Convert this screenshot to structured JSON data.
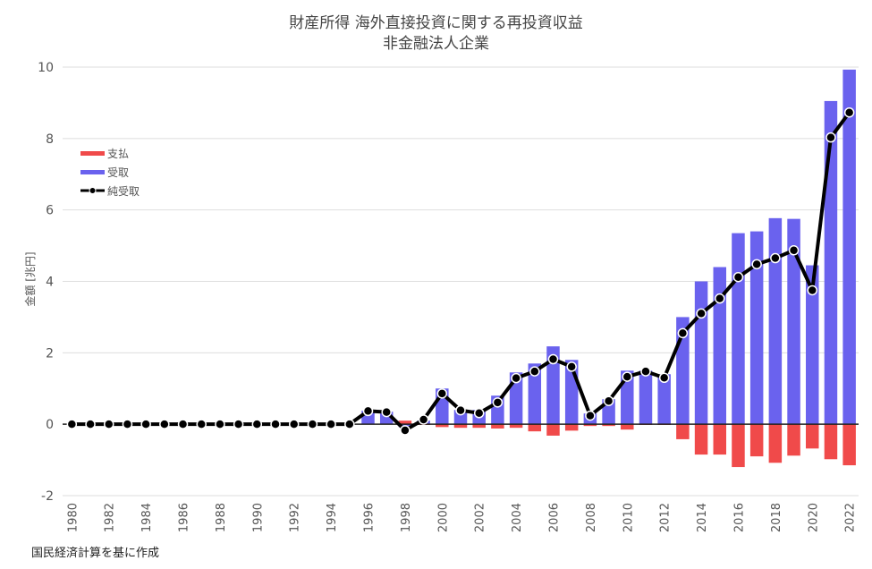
{
  "chart_data": {
    "type": "bar",
    "title": "財産所得 海外直接投資に関する再投資収益",
    "subtitle": "非金融法人企業",
    "ylabel": "金額 [兆円]",
    "xlabel": "",
    "ylim": [
      -2,
      10
    ],
    "yticks": [
      -2,
      0,
      2,
      4,
      6,
      8,
      10
    ],
    "grid": true,
    "legend_position": "top-left",
    "x": [
      1980,
      1981,
      1982,
      1983,
      1984,
      1985,
      1986,
      1987,
      1988,
      1989,
      1990,
      1991,
      1992,
      1993,
      1994,
      1995,
      1996,
      1997,
      1998,
      1999,
      2000,
      2001,
      2002,
      2003,
      2004,
      2005,
      2006,
      2007,
      2008,
      2009,
      2010,
      2011,
      2012,
      2013,
      2014,
      2015,
      2016,
      2017,
      2018,
      2019,
      2020,
      2021,
      2022
    ],
    "xtick_labels": [
      "1980",
      "1982",
      "1984",
      "1986",
      "1988",
      "1990",
      "1992",
      "1994",
      "1996",
      "1998",
      "2000",
      "2002",
      "2004",
      "2006",
      "2008",
      "2010",
      "2012",
      "2014",
      "2016",
      "2018",
      "2020",
      "2022"
    ],
    "series": [
      {
        "name": "支払",
        "kind": "bar",
        "color": "#f04a4a",
        "values": [
          0,
          0,
          0,
          0,
          0,
          0,
          0,
          0,
          0,
          0,
          0,
          0,
          0,
          0,
          0,
          0,
          0,
          0,
          0.1,
          -0.02,
          -0.08,
          -0.1,
          -0.1,
          -0.12,
          -0.1,
          -0.2,
          -0.32,
          -0.18,
          -0.05,
          -0.05,
          -0.15,
          -0.02,
          -0.02,
          -0.42,
          -0.85,
          -0.85,
          -1.2,
          -0.9,
          -1.08,
          -0.88,
          -0.68,
          -0.98,
          -1.15
        ]
      },
      {
        "name": "受取",
        "kind": "bar",
        "color": "#6a62ee",
        "values": [
          0,
          0,
          0,
          0,
          0,
          0,
          0,
          0,
          0,
          0,
          0,
          0,
          0,
          0,
          0,
          0,
          0.38,
          0.35,
          -0.08,
          0.1,
          1.0,
          0.4,
          0.4,
          0.8,
          1.45,
          1.7,
          2.18,
          1.8,
          0.3,
          0.7,
          1.5,
          1.5,
          1.4,
          3.0,
          4.0,
          4.4,
          5.35,
          5.4,
          5.77,
          5.75,
          4.45,
          9.05,
          9.93
        ]
      },
      {
        "name": "純受取",
        "kind": "line",
        "color": "#000000",
        "values": [
          0,
          0,
          0,
          0,
          0,
          0,
          0,
          0,
          0,
          0,
          0,
          0,
          0,
          0,
          0,
          0,
          0.37,
          0.34,
          -0.17,
          0.13,
          0.86,
          0.39,
          0.31,
          0.61,
          1.29,
          1.48,
          1.82,
          1.61,
          0.24,
          0.65,
          1.33,
          1.48,
          1.3,
          2.55,
          3.1,
          3.52,
          4.12,
          4.48,
          4.65,
          4.87,
          3.75,
          8.03,
          8.73
        ]
      }
    ]
  },
  "footnote": "国民経済計算を基に作成"
}
